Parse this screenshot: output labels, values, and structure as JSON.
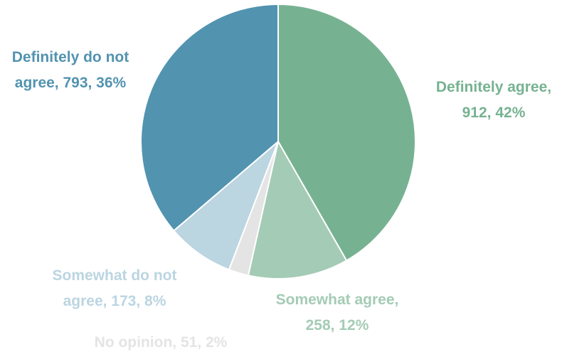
{
  "chart_data": {
    "type": "pie",
    "start_angle_deg": 0,
    "direction": "clockwise",
    "slices": [
      {
        "name": "Definitely agree",
        "value": 912,
        "percent": "42%",
        "color": "#76b291",
        "label_lines": [
          "Definitely agree,",
          "912, 42%"
        ]
      },
      {
        "name": "Somewhat agree",
        "value": 258,
        "percent": "12%",
        "color": "#a4cbb5",
        "label_lines": [
          "Somewhat agree,",
          "258, 12%"
        ]
      },
      {
        "name": "No opinion",
        "value": 51,
        "percent": "2%",
        "color": "#e4e4e4",
        "label_lines": [
          "No opinion, 51, 2%"
        ]
      },
      {
        "name": "Somewhat do not agree",
        "value": 173,
        "percent": "8%",
        "color": "#bbd5e1",
        "label_lines": [
          "Somewhat do not",
          "agree, 173, 8%"
        ]
      },
      {
        "name": "Definitely do not agree",
        "value": 793,
        "percent": "36%",
        "color": "#5293b0",
        "label_lines": [
          "Definitely do not",
          "agree, 793, 36%"
        ]
      }
    ]
  }
}
